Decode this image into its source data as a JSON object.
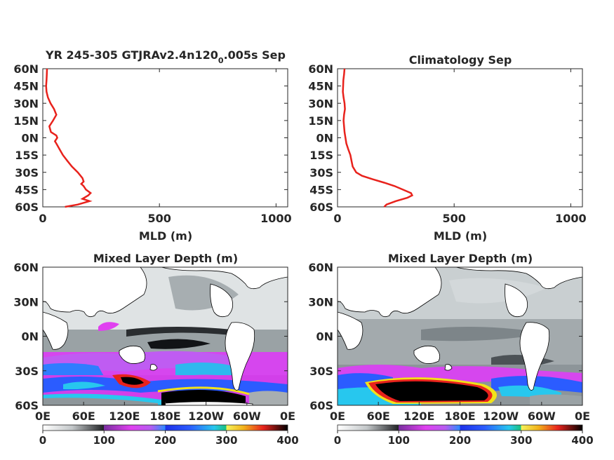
{
  "chart_data": [
    {
      "type": "line",
      "title_main": "YR 245-305 GTJRAv2.4n120",
      "title_sub": "0",
      "title_tail": ".005s Sep",
      "xlabel": "MLD (m)",
      "xlim": [
        0,
        1050
      ],
      "ylim": [
        -60,
        60
      ],
      "x_ticks": [
        "0",
        "500",
        "1000"
      ],
      "x_tick_values": [
        0,
        500,
        1000
      ],
      "y_ticks": [
        "60N",
        "45N",
        "30N",
        "15N",
        "0N",
        "15S",
        "30S",
        "45S",
        "60S"
      ],
      "y_tick_values": [
        60,
        45,
        30,
        15,
        0,
        -15,
        -30,
        -45,
        -60
      ],
      "line_color": "#e8221c",
      "series": [
        {
          "lat": [
            60,
            55,
            50,
            45,
            40,
            35,
            30,
            25,
            20,
            15,
            10,
            5,
            2,
            0,
            -3,
            -5,
            -10,
            -15,
            -20,
            -25,
            -30,
            -35,
            -38,
            -40,
            -42,
            -45,
            -48,
            -50,
            -53,
            -55,
            -58,
            -60
          ],
          "mld": [
            18,
            17,
            16,
            14,
            16,
            22,
            33,
            48,
            58,
            44,
            28,
            35,
            58,
            62,
            52,
            58,
            72,
            86,
            105,
            125,
            150,
            170,
            175,
            165,
            175,
            185,
            205,
            195,
            170,
            200,
            150,
            95
          ]
        }
      ]
    },
    {
      "type": "line",
      "title": "Climatology Sep",
      "xlabel": "MLD (m)",
      "xlim": [
        0,
        1050
      ],
      "ylim": [
        -60,
        60
      ],
      "x_ticks": [
        "0",
        "500",
        "1000"
      ],
      "x_tick_values": [
        0,
        500,
        1000
      ],
      "y_ticks": [
        "60N",
        "45N",
        "30N",
        "15N",
        "0N",
        "15S",
        "30S",
        "45S",
        "60S"
      ],
      "y_tick_values": [
        60,
        45,
        30,
        15,
        0,
        -15,
        -30,
        -45,
        -60
      ],
      "line_color": "#e8221c",
      "series": [
        {
          "lat": [
            60,
            55,
            50,
            45,
            40,
            35,
            30,
            25,
            20,
            15,
            10,
            5,
            0,
            -5,
            -10,
            -15,
            -20,
            -25,
            -30,
            -33,
            -36,
            -39,
            -42,
            -45,
            -48,
            -50,
            -52,
            -55,
            -58,
            -60
          ],
          "mld": [
            30,
            28,
            25,
            24,
            23,
            26,
            30,
            32,
            28,
            26,
            28,
            30,
            34,
            38,
            46,
            55,
            60,
            65,
            80,
            105,
            150,
            200,
            245,
            280,
            315,
            320,
            300,
            250,
            210,
            200
          ]
        }
      ]
    },
    {
      "type": "heatmap",
      "title": "Mixed Layer Depth (m)",
      "x_ticks": [
        "0E",
        "60E",
        "120E",
        "180E",
        "120W",
        "60W",
        "0E"
      ],
      "y_ticks": [
        "60N",
        "30N",
        "0N",
        "30S",
        "60S"
      ],
      "colorbar_ticks": [
        "0",
        "100",
        "200",
        "300",
        "400"
      ],
      "colorbar_range": [
        0,
        400
      ]
    },
    {
      "type": "heatmap",
      "title": "Mixed Layer Depth (m)",
      "x_ticks": [
        "0E",
        "60E",
        "120E",
        "180E",
        "120W",
        "60W",
        "0E"
      ],
      "y_ticks": [
        "60N",
        "30N",
        "0N",
        "30S",
        "60S"
      ],
      "colorbar_ticks": [
        "0",
        "100",
        "200",
        "300",
        "400"
      ],
      "colorbar_range": [
        0,
        400
      ]
    }
  ],
  "colors": {
    "land": "#ffffff",
    "ocean_light": "#e9ecec",
    "ocean_mid": "#9ba3a6",
    "ocean_dark": "#2a2d30",
    "magenta": "#e040f0",
    "purple": "#8a3bd1",
    "blue": "#2b5cff",
    "cyan": "#27c7ee",
    "teal": "#19b889",
    "yellow": "#f2e21a",
    "red": "#e8221c",
    "black": "#000000"
  }
}
